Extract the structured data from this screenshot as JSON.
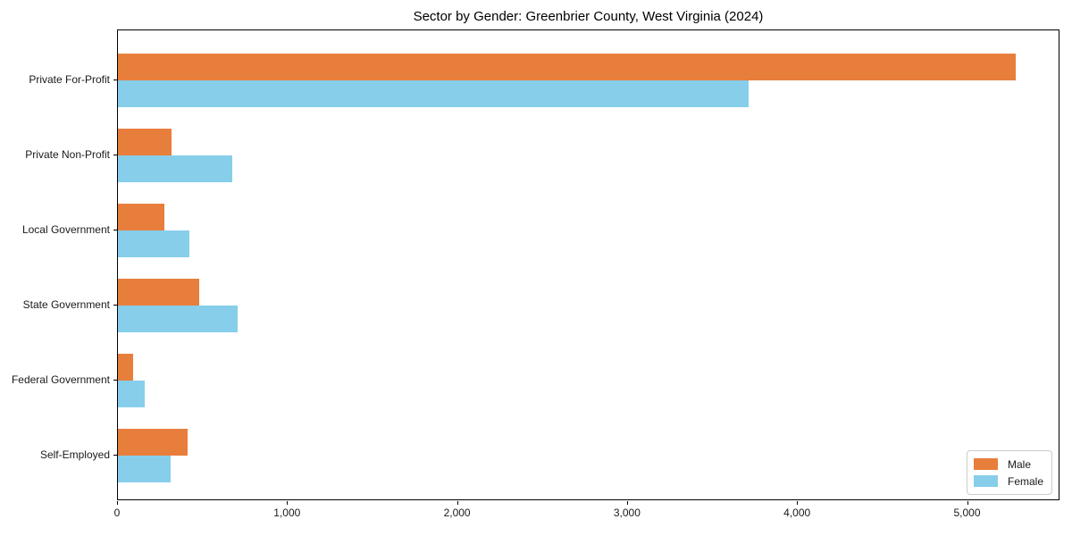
{
  "chart_data": {
    "type": "bar",
    "orientation": "horizontal",
    "title": "Sector by Gender: Greenbrier County, West Virginia (2024)",
    "xlabel": "",
    "ylabel": "",
    "categories": [
      "Private For-Profit",
      "Private Non-Profit",
      "Local Government",
      "State Government",
      "Federal Government",
      "Self-Employed"
    ],
    "series": [
      {
        "name": "Male",
        "color": "#E87E3C",
        "values": [
          5280,
          315,
          275,
          480,
          90,
          410
        ]
      },
      {
        "name": "Female",
        "color": "#87CEEB",
        "values": [
          3710,
          670,
          420,
          705,
          158,
          310
        ]
      }
    ],
    "xlim": [
      0,
      5544
    ],
    "x_tick_values": [
      0,
      1000,
      2000,
      3000,
      4000,
      5000
    ],
    "x_tick_labels": [
      "0",
      "1,000",
      "2,000",
      "3,000",
      "4,000",
      "5,000"
    ],
    "grid": false,
    "legend_position": "lower right",
    "plot_background": "#ffffff",
    "spine_color": "#000000"
  }
}
